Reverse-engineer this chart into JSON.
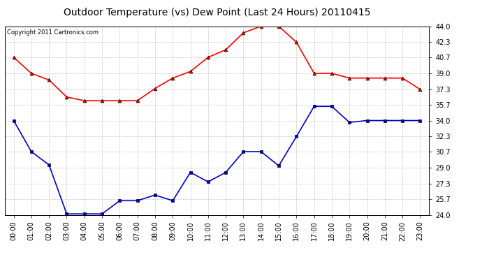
{
  "title": "Outdoor Temperature (vs) Dew Point (Last 24 Hours) 20110415",
  "copyright": "Copyright 2011 Cartronics.com",
  "x_labels": [
    "00:00",
    "01:00",
    "02:00",
    "03:00",
    "04:00",
    "05:00",
    "06:00",
    "07:00",
    "08:00",
    "09:00",
    "10:00",
    "11:00",
    "12:00",
    "13:00",
    "14:00",
    "15:00",
    "16:00",
    "17:00",
    "18:00",
    "19:00",
    "20:00",
    "21:00",
    "22:00",
    "23:00"
  ],
  "temp_data": [
    40.7,
    39.0,
    38.3,
    36.5,
    36.1,
    36.1,
    36.1,
    36.1,
    37.4,
    38.5,
    39.2,
    40.7,
    41.5,
    43.3,
    44.0,
    44.0,
    42.3,
    39.0,
    39.0,
    38.5,
    38.5,
    38.5,
    38.5,
    37.3
  ],
  "dew_data": [
    34.0,
    30.7,
    29.3,
    24.1,
    24.1,
    24.1,
    25.5,
    25.5,
    26.1,
    25.5,
    28.5,
    27.5,
    28.5,
    30.7,
    30.7,
    29.2,
    32.3,
    35.5,
    35.5,
    33.8,
    34.0,
    34.0,
    34.0,
    34.0
  ],
  "ylim": [
    24.0,
    44.0
  ],
  "yticks": [
    24.0,
    25.7,
    27.3,
    29.0,
    30.7,
    32.3,
    34.0,
    35.7,
    37.3,
    39.0,
    40.7,
    42.3,
    44.0
  ],
  "temp_color": "#ff0000",
  "dew_color": "#0000cc",
  "marker_color": "#000000",
  "bg_color": "#ffffff",
  "grid_color": "#c8c8c8",
  "title_fontsize": 10,
  "tick_fontsize": 7,
  "copyright_fontsize": 6
}
